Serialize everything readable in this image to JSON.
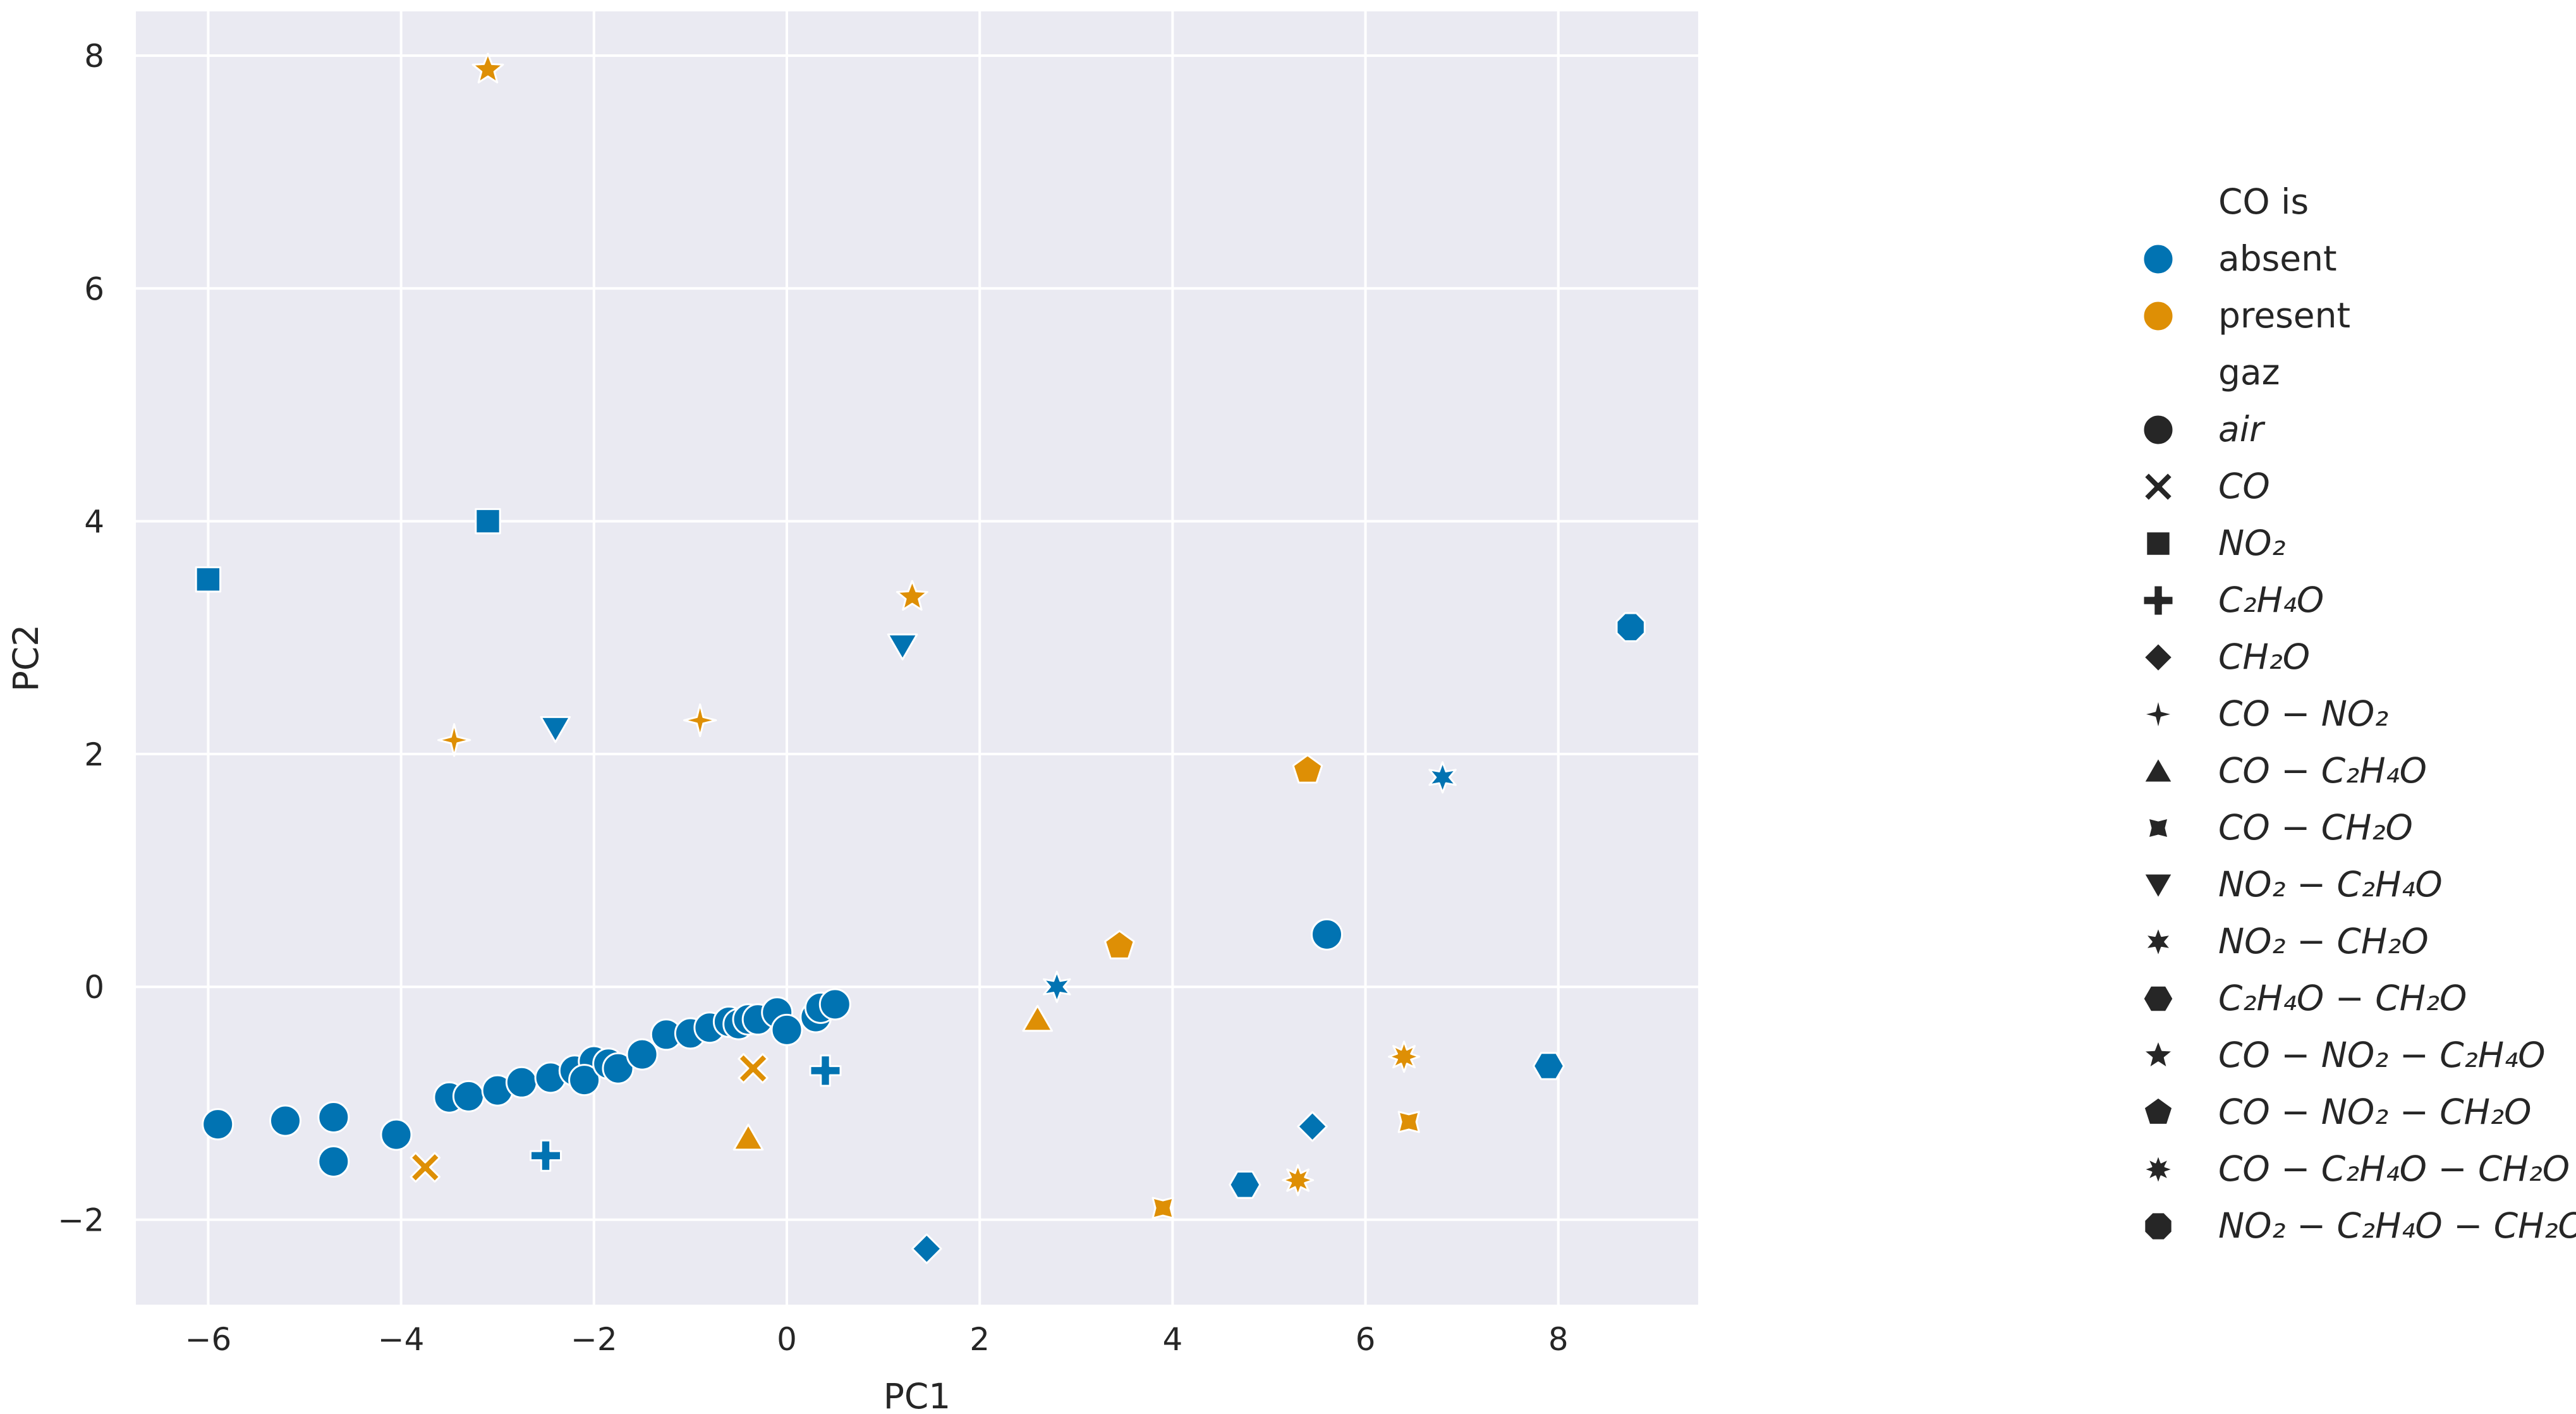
{
  "chart_data": {
    "type": "scatter",
    "xlabel": "PC1",
    "ylabel": "PC2",
    "xlim": [
      -6.75,
      9.45
    ],
    "ylim": [
      -2.73,
      8.38
    ],
    "xticks": [
      -6,
      -4,
      -2,
      0,
      2,
      4,
      6,
      8
    ],
    "yticks": [
      -2,
      0,
      2,
      4,
      6,
      8
    ],
    "xtick_labels": [
      "−6",
      "−4",
      "−2",
      "0",
      "2",
      "4",
      "6",
      "8"
    ],
    "ytick_labels": [
      "−2",
      "0",
      "2",
      "4",
      "6",
      "8"
    ],
    "grid": true,
    "legend_position": "right, outside plot",
    "colors": {
      "absent": "#0173b2",
      "present": "#de8f05",
      "background": "#eaeaf2",
      "grid": "#ffffff"
    },
    "hue": {
      "title": "CO is",
      "entries": [
        {
          "key": "absent",
          "label": "absent"
        },
        {
          "key": "present",
          "label": "present"
        }
      ]
    },
    "style": {
      "title": "gaz",
      "entries": [
        {
          "key": "air",
          "label": "air",
          "marker": "circle"
        },
        {
          "key": "CO",
          "label": "CO",
          "marker": "x"
        },
        {
          "key": "NO2",
          "label": "NO₂",
          "marker": "square"
        },
        {
          "key": "C2H4O",
          "label": "C₂H₄O",
          "marker": "plus"
        },
        {
          "key": "CH2O",
          "label": "CH₂O",
          "marker": "diamond"
        },
        {
          "key": "CO-NO2",
          "label": "CO − NO₂",
          "marker": "star4"
        },
        {
          "key": "CO-C2H4O",
          "label": "CO − C₂H₄O",
          "marker": "triangle-up"
        },
        {
          "key": "CO-CH2O",
          "label": "CO − CH₂O",
          "marker": "star4-concave"
        },
        {
          "key": "NO2-C2H4O",
          "label": "NO₂ − C₂H₄O",
          "marker": "triangle-down"
        },
        {
          "key": "NO2-CH2O",
          "label": "NO₂ − CH₂O",
          "marker": "star6"
        },
        {
          "key": "C2H4O-CH2O",
          "label": "C₂H₄O − CH₂O",
          "marker": "hexagon"
        },
        {
          "key": "CO-NO2-C2H4O",
          "label": "CO − NO₂ − C₂H₄O",
          "marker": "star5"
        },
        {
          "key": "CO-NO2-CH2O",
          "label": "CO − NO₂ − CH₂O",
          "marker": "pentagon"
        },
        {
          "key": "CO-C2H4O-CH2O",
          "label": "CO − C₂H₄O − CH₂O",
          "marker": "star8"
        },
        {
          "key": "NO2-C2H4O-CH2O",
          "label": "NO₂ − C₂H₄O − CH₂O",
          "marker": "octagon"
        }
      ]
    },
    "points": [
      {
        "x": -5.9,
        "y": -1.18,
        "co": "absent",
        "gaz": "air"
      },
      {
        "x": -5.2,
        "y": -1.15,
        "co": "absent",
        "gaz": "air"
      },
      {
        "x": -4.7,
        "y": -1.12,
        "co": "absent",
        "gaz": "air"
      },
      {
        "x": -4.7,
        "y": -1.5,
        "co": "absent",
        "gaz": "air"
      },
      {
        "x": -4.05,
        "y": -1.27,
        "co": "absent",
        "gaz": "air"
      },
      {
        "x": -3.5,
        "y": -0.95,
        "co": "absent",
        "gaz": "air"
      },
      {
        "x": -3.3,
        "y": -0.94,
        "co": "absent",
        "gaz": "air"
      },
      {
        "x": -3.0,
        "y": -0.89,
        "co": "absent",
        "gaz": "air"
      },
      {
        "x": -2.75,
        "y": -0.82,
        "co": "absent",
        "gaz": "air"
      },
      {
        "x": -2.45,
        "y": -0.78,
        "co": "absent",
        "gaz": "air"
      },
      {
        "x": -2.2,
        "y": -0.72,
        "co": "absent",
        "gaz": "air"
      },
      {
        "x": -2.0,
        "y": -0.64,
        "co": "absent",
        "gaz": "air"
      },
      {
        "x": -2.1,
        "y": -0.8,
        "co": "absent",
        "gaz": "air"
      },
      {
        "x": -1.85,
        "y": -0.66,
        "co": "absent",
        "gaz": "air"
      },
      {
        "x": -1.75,
        "y": -0.7,
        "co": "absent",
        "gaz": "air"
      },
      {
        "x": -1.5,
        "y": -0.58,
        "co": "absent",
        "gaz": "air"
      },
      {
        "x": -1.25,
        "y": -0.41,
        "co": "absent",
        "gaz": "air"
      },
      {
        "x": -1.0,
        "y": -0.4,
        "co": "absent",
        "gaz": "air"
      },
      {
        "x": -0.8,
        "y": -0.35,
        "co": "absent",
        "gaz": "air"
      },
      {
        "x": -0.6,
        "y": -0.3,
        "co": "absent",
        "gaz": "air"
      },
      {
        "x": -0.5,
        "y": -0.32,
        "co": "absent",
        "gaz": "air"
      },
      {
        "x": -0.4,
        "y": -0.28,
        "co": "absent",
        "gaz": "air"
      },
      {
        "x": -0.3,
        "y": -0.28,
        "co": "absent",
        "gaz": "air"
      },
      {
        "x": -0.1,
        "y": -0.22,
        "co": "absent",
        "gaz": "air"
      },
      {
        "x": 0.0,
        "y": -0.37,
        "co": "absent",
        "gaz": "air"
      },
      {
        "x": 0.3,
        "y": -0.26,
        "co": "absent",
        "gaz": "air"
      },
      {
        "x": 0.35,
        "y": -0.18,
        "co": "absent",
        "gaz": "air"
      },
      {
        "x": 0.5,
        "y": -0.15,
        "co": "absent",
        "gaz": "air"
      },
      {
        "x": 5.6,
        "y": 0.45,
        "co": "absent",
        "gaz": "air"
      },
      {
        "x": -3.75,
        "y": -1.55,
        "co": "present",
        "gaz": "CO"
      },
      {
        "x": -0.35,
        "y": -0.7,
        "co": "present",
        "gaz": "CO"
      },
      {
        "x": -6.0,
        "y": 3.5,
        "co": "absent",
        "gaz": "NO2"
      },
      {
        "x": -3.1,
        "y": 4.0,
        "co": "absent",
        "gaz": "NO2"
      },
      {
        "x": -2.5,
        "y": -1.45,
        "co": "absent",
        "gaz": "C2H4O"
      },
      {
        "x": 0.4,
        "y": -0.72,
        "co": "absent",
        "gaz": "C2H4O"
      },
      {
        "x": 1.45,
        "y": -2.25,
        "co": "absent",
        "gaz": "CH2O"
      },
      {
        "x": 5.45,
        "y": -1.2,
        "co": "absent",
        "gaz": "CH2O"
      },
      {
        "x": -3.45,
        "y": 2.12,
        "co": "present",
        "gaz": "CO-NO2"
      },
      {
        "x": -0.9,
        "y": 2.29,
        "co": "present",
        "gaz": "CO-NO2"
      },
      {
        "x": -0.4,
        "y": -1.3,
        "co": "present",
        "gaz": "CO-C2H4O"
      },
      {
        "x": 2.6,
        "y": -0.28,
        "co": "present",
        "gaz": "CO-C2H4O"
      },
      {
        "x": 3.9,
        "y": -1.9,
        "co": "present",
        "gaz": "CO-CH2O"
      },
      {
        "x": 6.45,
        "y": -1.16,
        "co": "present",
        "gaz": "CO-CH2O"
      },
      {
        "x": -2.4,
        "y": 2.22,
        "co": "absent",
        "gaz": "NO2-C2H4O"
      },
      {
        "x": 1.2,
        "y": 2.93,
        "co": "absent",
        "gaz": "NO2-C2H4O"
      },
      {
        "x": 2.8,
        "y": 0.0,
        "co": "absent",
        "gaz": "NO2-CH2O"
      },
      {
        "x": 6.8,
        "y": 1.8,
        "co": "absent",
        "gaz": "NO2-CH2O"
      },
      {
        "x": 4.75,
        "y": -1.7,
        "co": "absent",
        "gaz": "C2H4O-CH2O"
      },
      {
        "x": 7.9,
        "y": -0.68,
        "co": "absent",
        "gaz": "C2H4O-CH2O"
      },
      {
        "x": -3.1,
        "y": 7.88,
        "co": "present",
        "gaz": "CO-NO2-C2H4O"
      },
      {
        "x": 1.3,
        "y": 3.35,
        "co": "present",
        "gaz": "CO-NO2-C2H4O"
      },
      {
        "x": 3.45,
        "y": 0.35,
        "co": "present",
        "gaz": "CO-NO2-CH2O"
      },
      {
        "x": 5.4,
        "y": 1.86,
        "co": "present",
        "gaz": "CO-NO2-CH2O"
      },
      {
        "x": 5.3,
        "y": -1.66,
        "co": "present",
        "gaz": "CO-C2H4O-CH2O"
      },
      {
        "x": 6.4,
        "y": -0.6,
        "co": "present",
        "gaz": "CO-C2H4O-CH2O"
      },
      {
        "x": 8.75,
        "y": 3.09,
        "co": "absent",
        "gaz": "NO2-C2H4O-CH2O"
      }
    ]
  }
}
